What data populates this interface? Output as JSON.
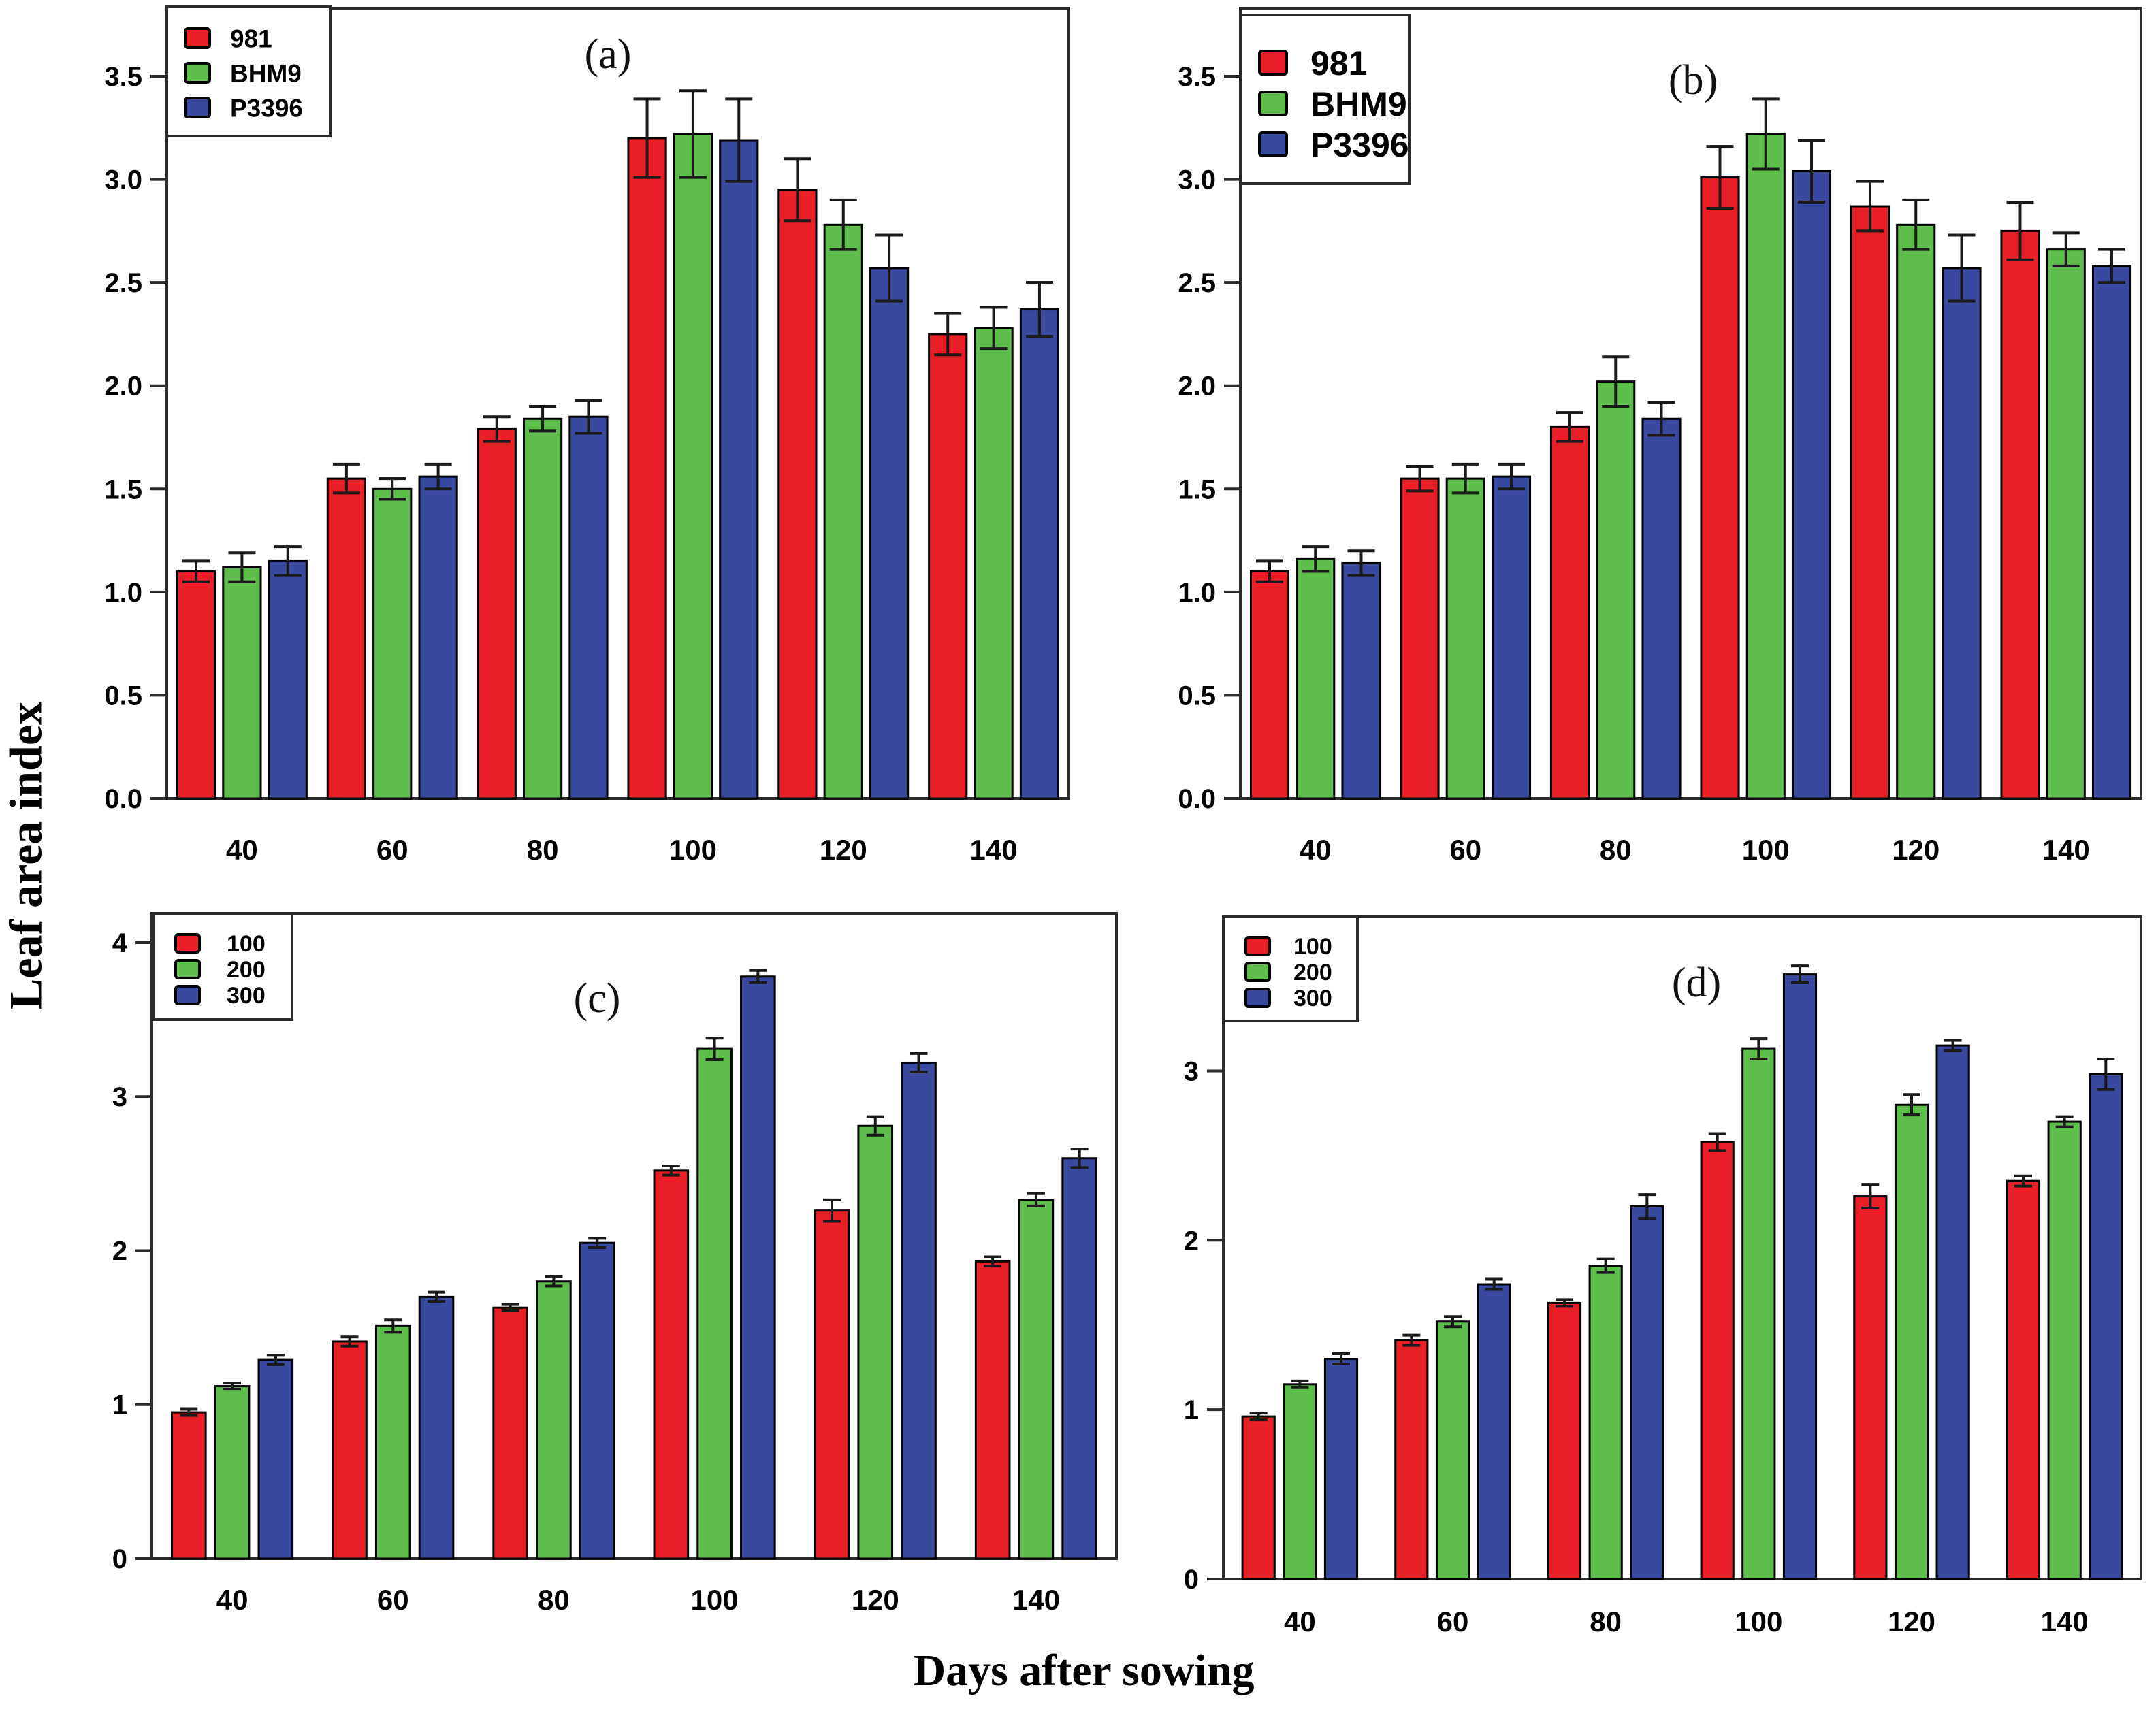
{
  "figure": {
    "y_axis_title": "Leaf area index",
    "x_axis_title": "Days after sowing"
  },
  "colors": {
    "red": "#e81f27",
    "green": "#5dbe4c",
    "blue": "#3a49a0",
    "frame": "#2b2b2b",
    "bar_stroke": "#000000",
    "error_stroke": "#1a1a1a",
    "legend_bg": "#ffffff"
  },
  "chart_data": [
    {
      "type": "bar",
      "panel_label": "(a)",
      "categories": [
        "40",
        "60",
        "80",
        "100",
        "120",
        "140"
      ],
      "ylim": [
        0,
        3.83
      ],
      "ytick_values": [
        0,
        0.5,
        1,
        1.5,
        2,
        2.5,
        3,
        3.5
      ],
      "ytick_labels": [
        "0.0",
        "0.5",
        "1.0",
        "1.5",
        "2.0",
        "2.5",
        "3.0",
        "3.5"
      ],
      "grid": false,
      "legend_position": "top-left",
      "series": [
        {
          "name": "981",
          "color": "red",
          "values": [
            1.1,
            1.55,
            1.79,
            3.2,
            2.95,
            2.25
          ],
          "errors": [
            0.05,
            0.07,
            0.06,
            0.19,
            0.15,
            0.1
          ]
        },
        {
          "name": "BHM9",
          "color": "green",
          "values": [
            1.12,
            1.5,
            1.84,
            3.22,
            2.78,
            2.28
          ],
          "errors": [
            0.07,
            0.05,
            0.06,
            0.21,
            0.12,
            0.1
          ]
        },
        {
          "name": "P3396",
          "color": "blue",
          "values": [
            1.15,
            1.56,
            1.85,
            3.19,
            2.57,
            2.37
          ],
          "errors": [
            0.07,
            0.06,
            0.08,
            0.2,
            0.16,
            0.13
          ]
        }
      ]
    },
    {
      "type": "bar",
      "panel_label": "(b)",
      "categories": [
        "40",
        "60",
        "80",
        "100",
        "120",
        "140"
      ],
      "ylim": [
        0,
        3.83
      ],
      "ytick_values": [
        0,
        0.5,
        1,
        1.5,
        2,
        2.5,
        3,
        3.5
      ],
      "ytick_labels": [
        "0.0",
        "0.5",
        "1.0",
        "1.5",
        "2.0",
        "2.5",
        "3.0",
        "3.5"
      ],
      "grid": false,
      "legend_position": "top-left",
      "series": [
        {
          "name": "981",
          "color": "red",
          "values": [
            1.1,
            1.55,
            1.8,
            3.01,
            2.87,
            2.75
          ],
          "errors": [
            0.05,
            0.06,
            0.07,
            0.15,
            0.12,
            0.14
          ]
        },
        {
          "name": "BHM9",
          "color": "green",
          "values": [
            1.16,
            1.55,
            2.02,
            3.22,
            2.78,
            2.66
          ],
          "errors": [
            0.06,
            0.07,
            0.12,
            0.17,
            0.12,
            0.08
          ]
        },
        {
          "name": "P3396",
          "color": "blue",
          "values": [
            1.14,
            1.56,
            1.84,
            3.04,
            2.57,
            2.58
          ],
          "errors": [
            0.06,
            0.06,
            0.08,
            0.15,
            0.16,
            0.08
          ]
        }
      ]
    },
    {
      "type": "bar",
      "panel_label": "(c)",
      "categories": [
        "40",
        "60",
        "80",
        "100",
        "120",
        "140"
      ],
      "ylim": [
        0,
        4.19
      ],
      "ytick_values": [
        0,
        1,
        2,
        3,
        4
      ],
      "ytick_labels": [
        "0",
        "1",
        "2",
        "3",
        "4"
      ],
      "grid": false,
      "legend_position": "top-left",
      "series": [
        {
          "name": "100",
          "color": "red",
          "values": [
            0.95,
            1.41,
            1.63,
            2.52,
            2.26,
            1.93
          ],
          "errors": [
            0.02,
            0.03,
            0.02,
            0.03,
            0.07,
            0.03
          ]
        },
        {
          "name": "200",
          "color": "green",
          "values": [
            1.12,
            1.51,
            1.8,
            3.31,
            2.81,
            2.33
          ],
          "errors": [
            0.02,
            0.04,
            0.03,
            0.07,
            0.06,
            0.04
          ]
        },
        {
          "name": "300",
          "color": "blue",
          "values": [
            1.29,
            1.7,
            2.05,
            3.78,
            3.22,
            2.6
          ],
          "errors": [
            0.03,
            0.03,
            0.03,
            0.04,
            0.06,
            0.06
          ]
        }
      ]
    },
    {
      "type": "bar",
      "panel_label": "(d)",
      "categories": [
        "40",
        "60",
        "80",
        "100",
        "120",
        "140"
      ],
      "ylim": [
        0,
        3.91
      ],
      "ytick_values": [
        0,
        1,
        2,
        3
      ],
      "ytick_labels": [
        "0",
        "1",
        "2",
        "3"
      ],
      "grid": false,
      "legend_position": "top-left",
      "series": [
        {
          "name": "100",
          "color": "red",
          "values": [
            0.96,
            1.41,
            1.63,
            2.58,
            2.26,
            2.35
          ],
          "errors": [
            0.02,
            0.03,
            0.02,
            0.05,
            0.07,
            0.03
          ]
        },
        {
          "name": "200",
          "color": "green",
          "values": [
            1.15,
            1.52,
            1.85,
            3.13,
            2.8,
            2.7
          ],
          "errors": [
            0.02,
            0.03,
            0.04,
            0.06,
            0.06,
            0.03
          ]
        },
        {
          "name": "300",
          "color": "blue",
          "values": [
            1.3,
            1.74,
            2.2,
            3.57,
            3.15,
            2.98
          ],
          "errors": [
            0.03,
            0.03,
            0.07,
            0.05,
            0.03,
            0.09
          ]
        }
      ]
    }
  ]
}
